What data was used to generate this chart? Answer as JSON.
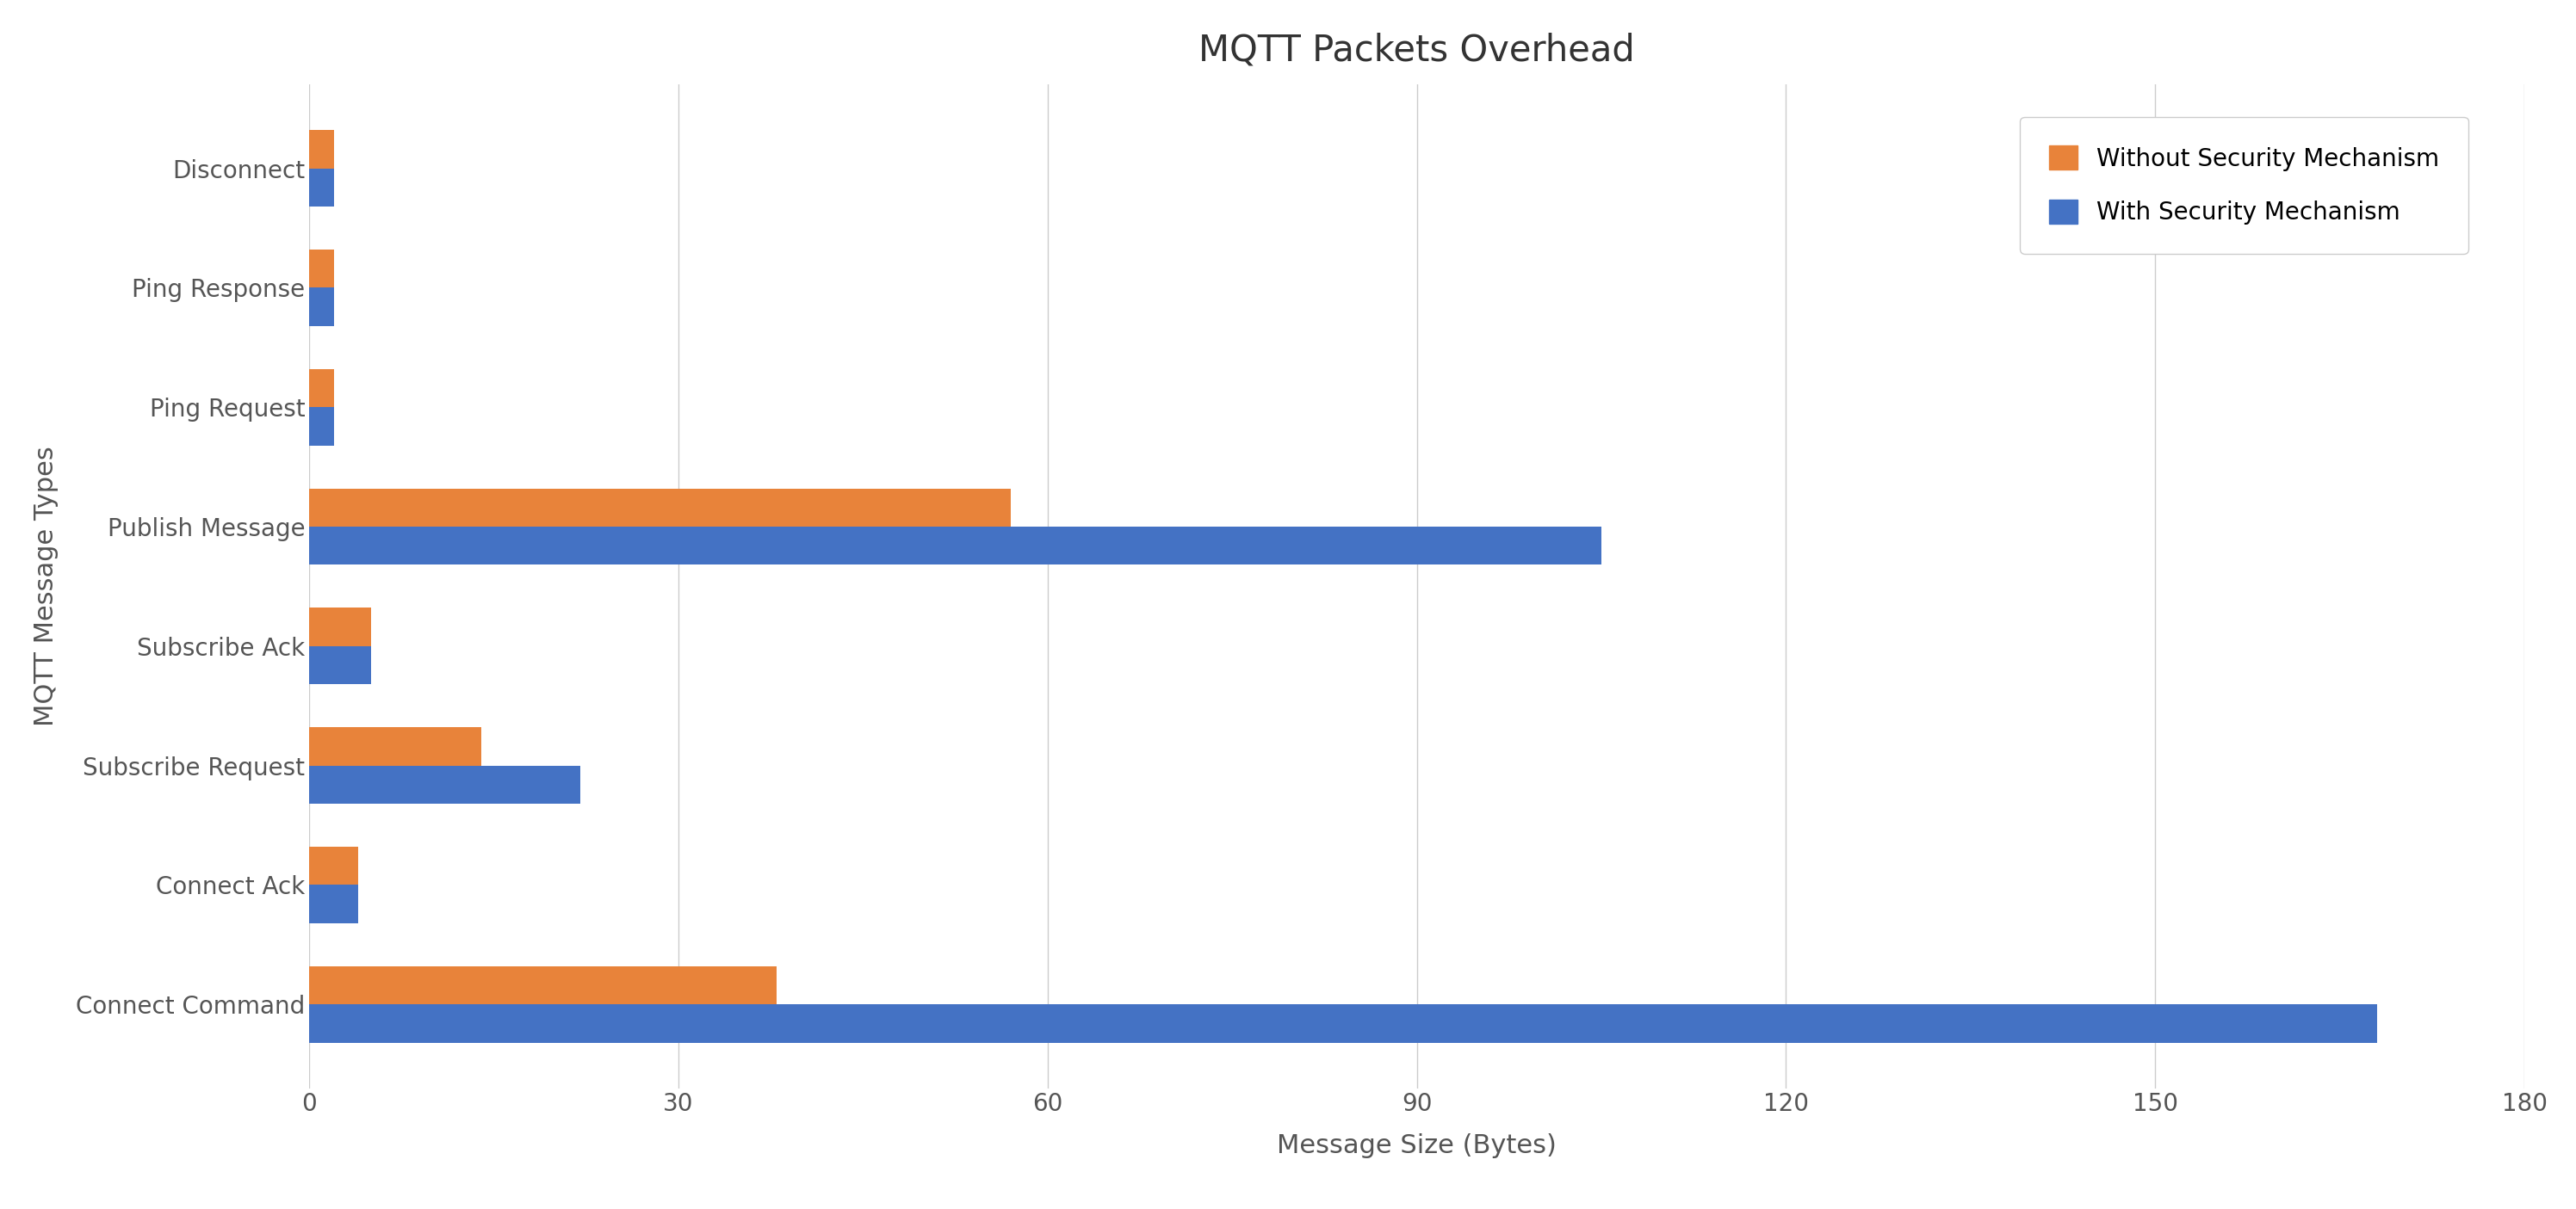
{
  "title": "MQTT Packets Overhead",
  "xlabel": "Message Size (Bytes)",
  "ylabel": "MQTT Message Types",
  "categories": [
    "Connect Command",
    "Connect Ack",
    "Subscribe Request",
    "Subscribe Ack",
    "Publish Message",
    "Ping Request",
    "Ping Response",
    "Disconnect"
  ],
  "without_security": [
    38,
    4,
    14,
    5,
    57,
    2,
    2,
    2
  ],
  "with_security": [
    168,
    4,
    22,
    5,
    105,
    2,
    2,
    2
  ],
  "color_without": "#E8833A",
  "color_with": "#4472C4",
  "legend_without": "Without Security Mechanism",
  "legend_with": "With Security Mechanism",
  "xlim": [
    0,
    180
  ],
  "xticks": [
    0,
    30,
    60,
    90,
    120,
    150,
    180
  ],
  "background_color": "#ffffff",
  "grid_color": "#cccccc",
  "bar_height": 0.32,
  "title_fontsize": 30,
  "label_fontsize": 22,
  "tick_fontsize": 20,
  "legend_fontsize": 20
}
